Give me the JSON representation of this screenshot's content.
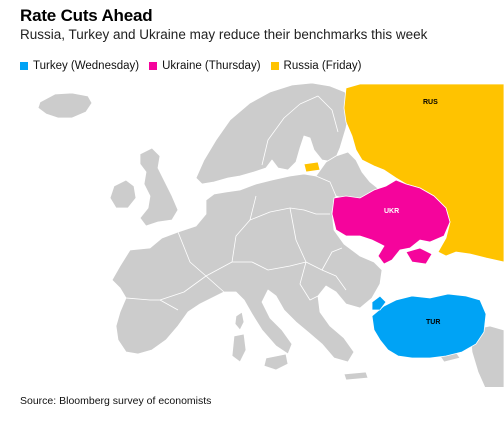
{
  "title": "Rate Cuts Ahead",
  "subtitle": "Russia, Turkey and Ukraine may reduce their benchmarks this week",
  "legend": [
    {
      "label": "Turkey (Wednesday)",
      "color": "#00A3F5"
    },
    {
      "label": "Ukraine (Thursday)",
      "color": "#F5049C"
    },
    {
      "label": "Russia (Friday)",
      "color": "#FFC300"
    }
  ],
  "map": {
    "base_color": "#CCCCCC",
    "border_color": "#FFFFFF",
    "labels": {
      "russia": "RUS",
      "ukraine": "UKR",
      "turkey": "TUR"
    }
  },
  "source": "Source: Bloomberg survey of economists"
}
